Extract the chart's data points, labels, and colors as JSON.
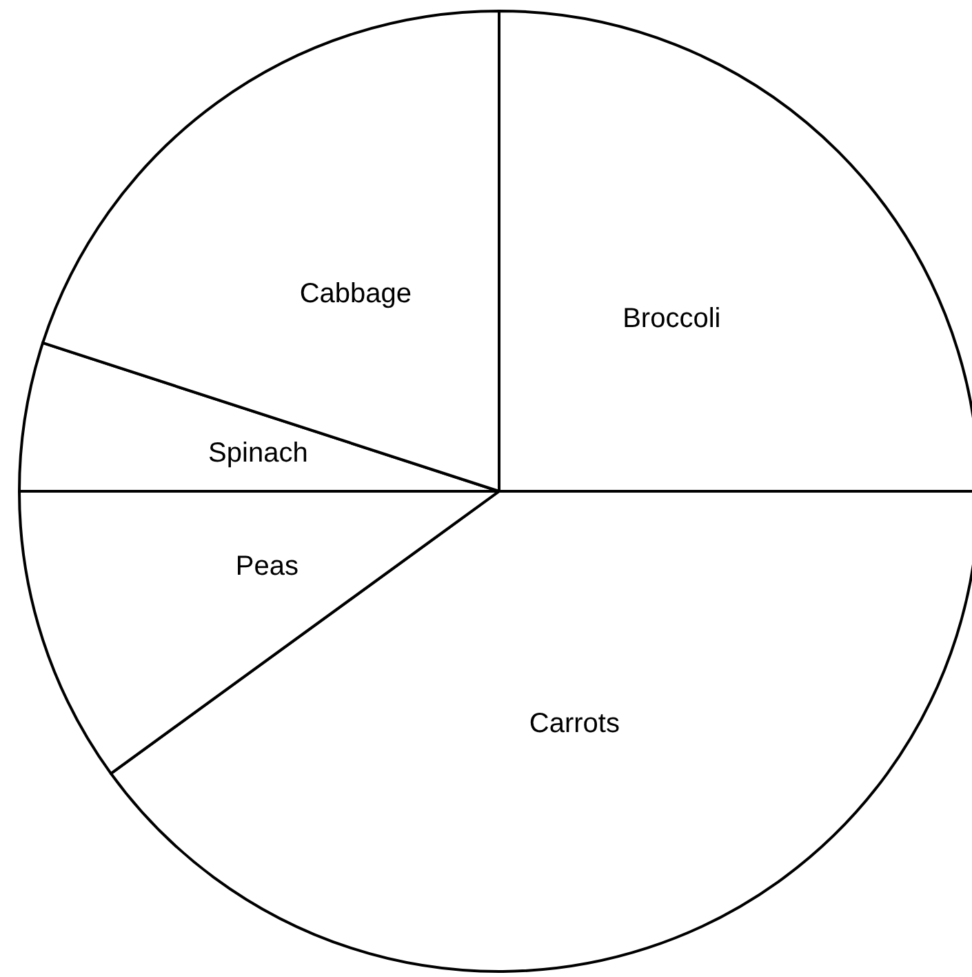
{
  "chart_data": {
    "type": "pie",
    "categories": [
      "Broccoli",
      "Carrots",
      "Peas",
      "Spinach",
      "Cabbage"
    ],
    "values": [
      25,
      40,
      10,
      5,
      20
    ],
    "colors": [
      "#ffffff",
      "#ffffff",
      "#ffffff",
      "#ffffff",
      "#ffffff"
    ]
  }
}
